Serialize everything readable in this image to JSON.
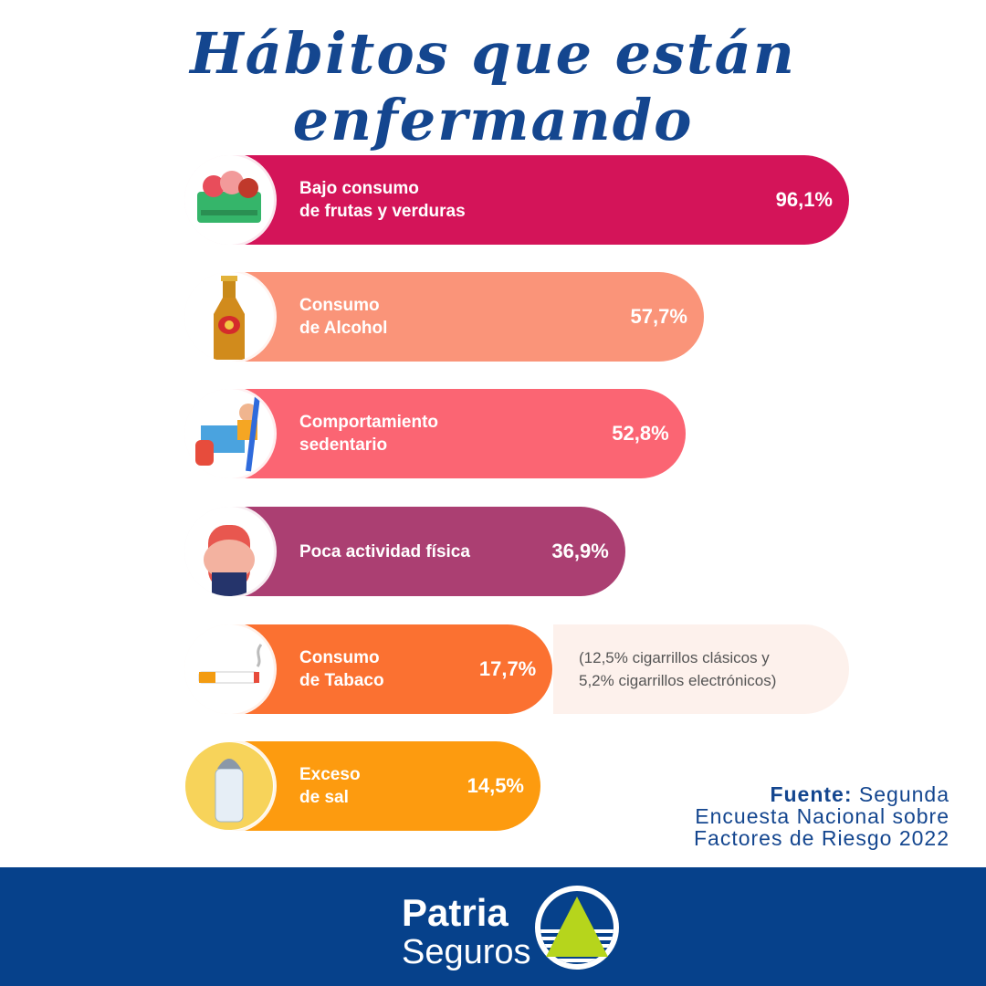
{
  "title": "Hábitos que están enfermando",
  "chart_data": {
    "type": "bar",
    "orientation": "horizontal",
    "categories": [
      "Bajo consumo\nde frutas y verduras",
      "Consumo\nde Alcohol",
      "Comportamiento\nsedentario",
      "Poca actividad física",
      "Consumo\nde Tabaco",
      "Exceso\nde sal"
    ],
    "values": [
      96.1,
      57.7,
      52.8,
      36.9,
      17.7,
      14.5
    ],
    "value_labels": [
      "96,1%",
      "57,7%",
      "52,8%",
      "36,9%",
      "17,7%",
      "14,5%"
    ],
    "colors": [
      "#d41459",
      "#fa9479",
      "#fb6573",
      "#ab3f72",
      "#fb7131",
      "#fd9b0f"
    ],
    "icons": [
      "food-basket-icon",
      "beer-bottle-icon",
      "sedentary-person-icon",
      "belly-icon",
      "cigarette-icon",
      "salt-shaker-icon"
    ],
    "annotation": "(12,5% cigarrillos clásicos y\n5,2% cigarrillos electrónicos)"
  },
  "source": {
    "label": "Fuente:",
    "text": " Segunda\nEncuesta Nacional sobre\nFactores de Riesgo 2022"
  },
  "footer": {
    "brand_line1": "Patria",
    "brand_line2": "Seguros",
    "background": "#06418b"
  }
}
